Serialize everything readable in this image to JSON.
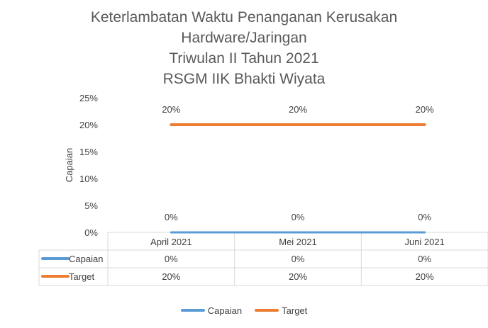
{
  "chart_data": {
    "type": "line",
    "title_lines": [
      "Keterlambatan Waktu Penanganan Kerusakan",
      "Hardware/Jaringan",
      "Triwulan II Tahun 2021",
      "RSGM IIK Bhakti Wiyata"
    ],
    "ylabel": "Capaian",
    "xlabel": "",
    "categories": [
      "April 2021",
      "Mei 2021",
      "Juni 2021"
    ],
    "ylim": [
      0,
      25
    ],
    "yticks": [
      "0%",
      "5%",
      "10%",
      "15%",
      "20%",
      "25%"
    ],
    "series": [
      {
        "name": "Capaian",
        "values": [
          0,
          0,
          0
        ],
        "labels": [
          "0%",
          "0%",
          "0%"
        ],
        "color": "#5b9bd5"
      },
      {
        "name": "Target",
        "values": [
          20,
          20,
          20
        ],
        "labels": [
          "20%",
          "20%",
          "20%"
        ],
        "color": "#ed7d31"
      }
    ],
    "data_table": true,
    "grid": false,
    "legend_position": "bottom"
  }
}
